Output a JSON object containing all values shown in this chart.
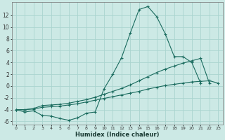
{
  "xlabel": "Humidex (Indice chaleur)",
  "background_color": "#cce9e5",
  "grid_color": "#aad4cf",
  "line_color": "#1a6b5e",
  "xlim": [
    -0.5,
    23.5
  ],
  "ylim": [
    -6.5,
    14.2
  ],
  "x_all": [
    0,
    1,
    2,
    3,
    4,
    5,
    6,
    7,
    8,
    9,
    10,
    11,
    12,
    13,
    14,
    15,
    16,
    17,
    18,
    19,
    20,
    21,
    22,
    23
  ],
  "line1_x": [
    0,
    1,
    2,
    3,
    4,
    5,
    6,
    7,
    8,
    9,
    10,
    11,
    12,
    13,
    14,
    15,
    16,
    17,
    18,
    19,
    20,
    21,
    22,
    23
  ],
  "line1_y": [
    -4.0,
    -4.4,
    -4.2,
    -5.0,
    -5.1,
    -5.5,
    -5.8,
    -5.4,
    -4.6,
    -4.4,
    -0.5,
    2.0,
    4.8,
    9.0,
    13.0,
    13.5,
    11.8,
    8.8,
    5.0,
    5.0,
    4.0,
    0.5,
    null,
    null
  ],
  "line2_x": [
    0,
    1,
    2,
    3,
    4,
    5,
    6,
    7,
    8,
    9,
    10,
    11,
    12,
    13,
    14,
    15,
    16,
    17,
    18,
    19,
    20,
    21,
    22,
    23
  ],
  "line2_y": [
    -4.0,
    -4.0,
    -3.8,
    -3.3,
    -3.2,
    -3.1,
    -2.9,
    -2.6,
    -2.3,
    -1.9,
    -1.4,
    -0.9,
    -0.4,
    0.2,
    0.9,
    1.6,
    2.3,
    2.9,
    3.4,
    3.9,
    4.3,
    4.7,
    0.5,
    null
  ],
  "line3_x": [
    0,
    1,
    2,
    3,
    4,
    5,
    6,
    7,
    8,
    9,
    10,
    11,
    12,
    13,
    14,
    15,
    16,
    17,
    18,
    19,
    20,
    21,
    22,
    23
  ],
  "line3_y": [
    -4.0,
    -4.0,
    -3.9,
    -3.6,
    -3.5,
    -3.4,
    -3.2,
    -3.0,
    -2.7,
    -2.4,
    -2.1,
    -1.8,
    -1.5,
    -1.2,
    -0.9,
    -0.5,
    -0.2,
    0.1,
    0.3,
    0.5,
    0.7,
    0.8,
    0.9,
    0.5
  ]
}
